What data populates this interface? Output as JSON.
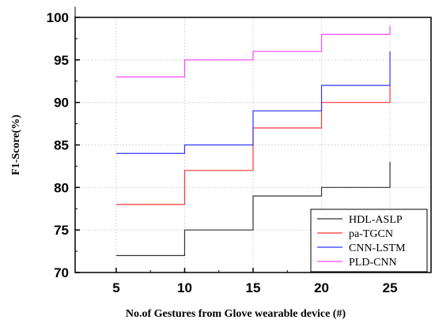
{
  "chart_data": {
    "type": "line",
    "step": true,
    "xlabel": "No.of Gestures from Glove wearable device (#)",
    "ylabel": "F1-Score(%)",
    "xlim": [
      2,
      28
    ],
    "ylim": [
      70,
      100
    ],
    "xticks": [
      "5",
      "10",
      "15",
      "20",
      "25"
    ],
    "xtick_values": [
      5,
      10,
      15,
      20,
      25
    ],
    "yticks": [
      "70",
      "75",
      "80",
      "85",
      "90",
      "95",
      "100"
    ],
    "ytick_values": [
      70,
      75,
      80,
      85,
      90,
      95,
      100
    ],
    "grid": true,
    "legend_position": "bottom-right",
    "series": [
      {
        "name": "HDL-ASLP",
        "color": "#333333",
        "x": [
          5,
          10,
          15,
          20,
          25
        ],
        "y": [
          72,
          75,
          79,
          80,
          83
        ]
      },
      {
        "name": "pa-TGCN",
        "color": "#ff3333",
        "x": [
          5,
          10,
          15,
          20,
          25
        ],
        "y": [
          78,
          82,
          87,
          90,
          92
        ]
      },
      {
        "name": "CNN-LSTM",
        "color": "#3333ff",
        "x": [
          5,
          10,
          15,
          20,
          25
        ],
        "y": [
          84,
          85,
          89,
          92,
          96
        ]
      },
      {
        "name": "PLD-CNN",
        "color": "#ff44ff",
        "x": [
          5,
          10,
          15,
          20,
          25
        ],
        "y": [
          93,
          95,
          96,
          98,
          99
        ]
      }
    ]
  }
}
